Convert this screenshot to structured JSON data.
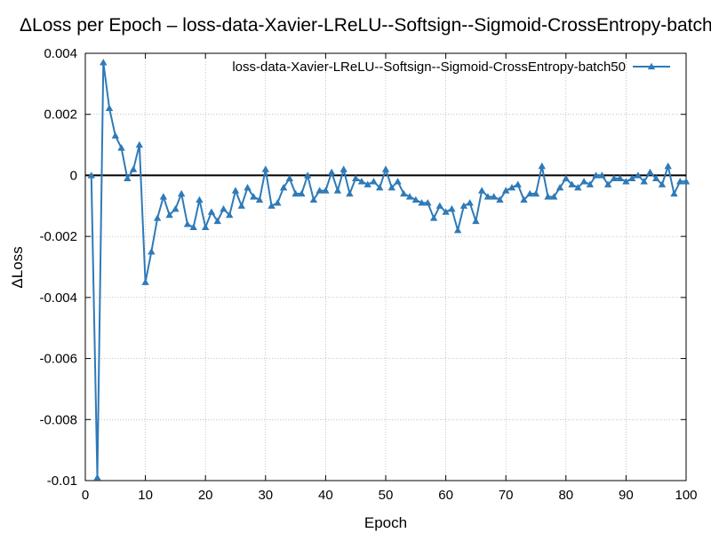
{
  "chart_data": {
    "type": "line",
    "title": "ΔLoss per Epoch – loss-data-Xavier-LReLU--Softsign--Sigmoid-CrossEntropy-batch50",
    "xlabel": "Epoch",
    "ylabel": "ΔLoss",
    "xlim": [
      0,
      100
    ],
    "ylim": [
      -0.01,
      0.004
    ],
    "xticks": [
      0,
      10,
      20,
      30,
      40,
      50,
      60,
      70,
      80,
      90,
      100
    ],
    "yticks": [
      -0.01,
      -0.008,
      -0.006,
      -0.004,
      -0.002,
      0,
      0.002,
      0.004
    ],
    "xtick_labels": [
      "0",
      "10",
      "20",
      "30",
      "40",
      "50",
      "60",
      "70",
      "80",
      "90",
      "100"
    ],
    "ytick_labels": [
      "-0.01",
      "-0.008",
      "-0.006",
      "-0.004",
      "-0.002",
      "0",
      "0.002",
      "0.004"
    ],
    "grid": true,
    "legend_position": "top-right",
    "zero_line": true,
    "series": [
      {
        "name": "loss-data-Xavier-LReLU--Softsign--Sigmoid-CrossEntropy-batch50",
        "color": "#2f7ab8",
        "marker": "triangle",
        "x": [
          1,
          2,
          3,
          4,
          5,
          6,
          7,
          8,
          9,
          10,
          11,
          12,
          13,
          14,
          15,
          16,
          17,
          18,
          19,
          20,
          21,
          22,
          23,
          24,
          25,
          26,
          27,
          28,
          29,
          30,
          31,
          32,
          33,
          34,
          35,
          36,
          37,
          38,
          39,
          40,
          41,
          42,
          43,
          44,
          45,
          46,
          47,
          48,
          49,
          50,
          51,
          52,
          53,
          54,
          55,
          56,
          57,
          58,
          59,
          60,
          61,
          62,
          63,
          64,
          65,
          66,
          67,
          68,
          69,
          70,
          71,
          72,
          73,
          74,
          75,
          76,
          77,
          78,
          79,
          80,
          81,
          82,
          83,
          84,
          85,
          86,
          87,
          88,
          89,
          90,
          91,
          92,
          93,
          94,
          95,
          96,
          97,
          98,
          99,
          100
        ],
        "y": [
          0.0,
          -0.0099,
          0.0037,
          0.0022,
          0.0013,
          0.0009,
          -0.0001,
          0.0002,
          0.001,
          -0.0035,
          -0.0025,
          -0.0014,
          -0.0007,
          -0.0013,
          -0.0011,
          -0.0006,
          -0.0016,
          -0.0017,
          -0.0008,
          -0.0017,
          -0.0012,
          -0.0015,
          -0.0011,
          -0.0013,
          -0.0005,
          -0.001,
          -0.0004,
          -0.0007,
          -0.0008,
          0.0002,
          -0.001,
          -0.0009,
          -0.0004,
          -0.0001,
          -0.0006,
          -0.0006,
          0.0,
          -0.0008,
          -0.0005,
          -0.0005,
          0.0001,
          -0.0005,
          0.0002,
          -0.0006,
          -0.0001,
          -0.0002,
          -0.0003,
          -0.0002,
          -0.0004,
          0.0002,
          -0.0004,
          -0.0002,
          -0.0006,
          -0.0007,
          -0.0008,
          -0.0009,
          -0.0009,
          -0.0014,
          -0.001,
          -0.0012,
          -0.0011,
          -0.0018,
          -0.001,
          -0.0009,
          -0.0015,
          -0.0005,
          -0.0007,
          -0.0007,
          -0.0008,
          -0.0005,
          -0.0004,
          -0.0003,
          -0.0008,
          -0.0006,
          -0.0006,
          0.0003,
          -0.0007,
          -0.0007,
          -0.0004,
          -0.0001,
          -0.0003,
          -0.0004,
          -0.0002,
          -0.0003,
          0.0,
          0.0,
          -0.0003,
          -0.0001,
          -0.0001,
          -0.0002,
          -0.0001,
          0.0,
          -0.0002,
          0.0001,
          -0.0001,
          -0.0003,
          0.0003,
          -0.0006,
          -0.0002,
          -0.0002
        ]
      }
    ]
  }
}
